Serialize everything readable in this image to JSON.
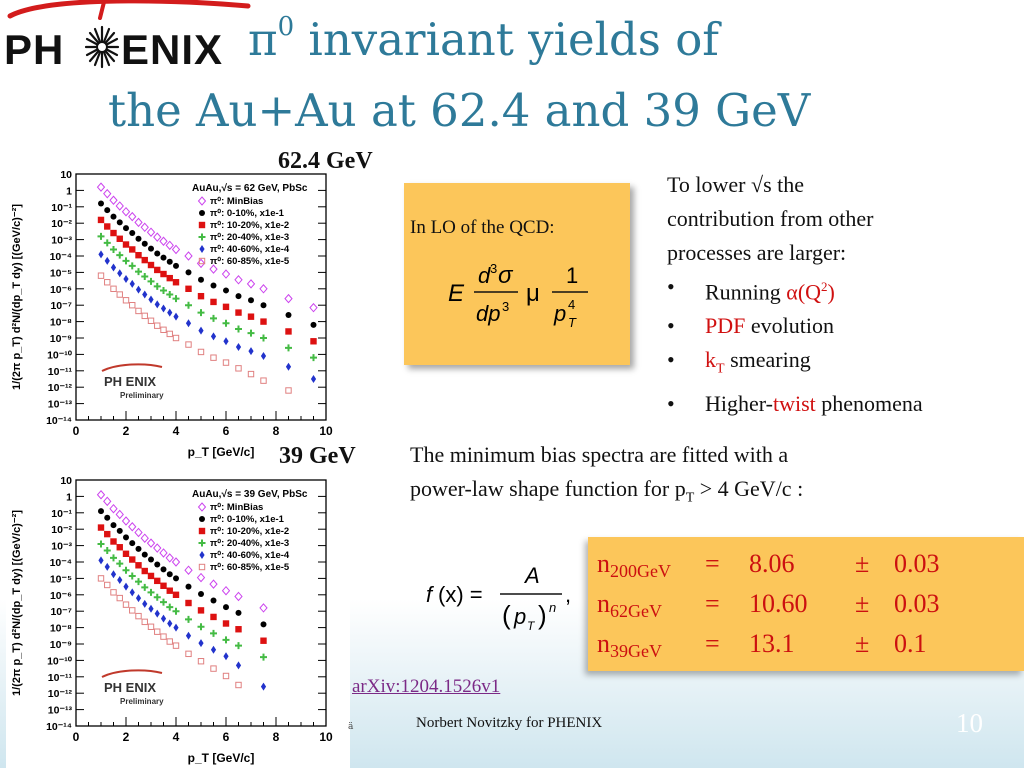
{
  "logo": {
    "left": "PH",
    "right": "ENIX"
  },
  "title": {
    "line1_symbol": "π",
    "line1_sup": "0",
    "line1_rest": " invariant yields of",
    "line2": "the Au+Au at 62.4 and 39 GeV"
  },
  "plots": [
    {
      "energy_label": "62.4 GeV",
      "legend_title": "AuAu,√s = 62 GeV, PbSc",
      "legend": [
        "π⁰: MinBias",
        "π⁰: 0-10%, x1e-1",
        "π⁰: 10-20%, x1e-2",
        "π⁰: 20-40%, x1e-3",
        "π⁰: 40-60%, x1e-4",
        "π⁰: 60-85%, x1e-5"
      ],
      "xlabel": "p_T [GeV/c]",
      "ylabel": "1/(2π p_T) d²N/(dp_T dy) [(GeV/c)⁻²]",
      "logo_text": "PH ENIX",
      "logo_sub": "Preliminary"
    },
    {
      "energy_label": "39 GeV",
      "legend_title": "AuAu,√s = 39 GeV, PbSc",
      "legend": [
        "π⁰: MinBias",
        "π⁰: 0-10%, x1e-1",
        "π⁰: 10-20%, x1e-2",
        "π⁰: 20-40%, x1e-3",
        "π⁰: 40-60%, x1e-4",
        "π⁰: 60-85%, x1e-5"
      ],
      "xlabel": "p_T [GeV/c]",
      "ylabel": "1/(2π p_T) d²N/(dp_T dy) [(GeV/c)⁻²]",
      "logo_text": "PH ENIX",
      "logo_sub": "Preliminary"
    }
  ],
  "chart_data": [
    {
      "type": "scatter",
      "title": "AuAu,√s = 62 GeV, PbSc",
      "xlabel": "p_T [GeV/c]",
      "ylabel": "1/(2π p_T) d²N/(dp_T dy) [(GeV/c)⁻²]",
      "xlim": [
        0,
        10
      ],
      "ylim_log10": [
        -14,
        1
      ],
      "yscale": "log",
      "x_ticks": [
        "0",
        "2",
        "4",
        "6",
        "8",
        "10"
      ],
      "y_ticks": [
        "10",
        "1",
        "10⁻¹",
        "10⁻²",
        "10⁻³",
        "10⁻⁴",
        "10⁻⁵",
        "10⁻⁶",
        "10⁻⁷",
        "10⁻⁸",
        "10⁻⁹",
        "10⁻¹⁰",
        "10⁻¹¹",
        "10⁻¹²",
        "10⁻¹³",
        "10⁻¹⁴"
      ],
      "legend_position": "top-right",
      "series": [
        {
          "name": "π⁰: MinBias",
          "color": "#cc44ee",
          "marker": "open-diamond",
          "x": [
            1.0,
            1.25,
            1.5,
            1.75,
            2.0,
            2.25,
            2.5,
            2.75,
            3.0,
            3.25,
            3.5,
            3.75,
            4.0,
            4.5,
            5.0,
            5.5,
            6.0,
            6.5,
            7.0,
            7.5,
            8.5,
            9.5
          ],
          "y_log10": [
            0.2,
            -0.2,
            -0.6,
            -0.95,
            -1.3,
            -1.6,
            -1.95,
            -2.25,
            -2.55,
            -2.85,
            -3.1,
            -3.35,
            -3.6,
            -4.0,
            -4.45,
            -4.8,
            -5.1,
            -5.45,
            -5.7,
            -6.0,
            -6.6,
            -7.15
          ]
        },
        {
          "name": "π⁰: 0-10%, x1e-1",
          "color": "#000000",
          "marker": "filled-circle",
          "x": [
            1.0,
            1.25,
            1.5,
            1.75,
            2.0,
            2.25,
            2.5,
            2.75,
            3.0,
            3.25,
            3.5,
            3.75,
            4.0,
            4.5,
            5.0,
            5.5,
            6.0,
            6.5,
            7.0,
            7.5,
            8.5,
            9.5
          ],
          "y_log10": [
            -0.8,
            -1.2,
            -1.6,
            -1.95,
            -2.3,
            -2.6,
            -2.95,
            -3.25,
            -3.55,
            -3.85,
            -4.1,
            -4.35,
            -4.6,
            -5.0,
            -5.45,
            -5.8,
            -6.1,
            -6.45,
            -6.7,
            -7.0,
            -7.6,
            -8.2
          ]
        },
        {
          "name": "π⁰: 10-20%, x1e-2",
          "color": "#dd1111",
          "marker": "filled-square",
          "x": [
            1.0,
            1.25,
            1.5,
            1.75,
            2.0,
            2.25,
            2.5,
            2.75,
            3.0,
            3.25,
            3.5,
            3.75,
            4.0,
            4.5,
            5.0,
            5.5,
            6.0,
            6.5,
            7.0,
            7.5,
            8.5,
            9.5
          ],
          "y_log10": [
            -1.8,
            -2.2,
            -2.6,
            -2.95,
            -3.3,
            -3.6,
            -3.95,
            -4.25,
            -4.55,
            -4.85,
            -5.1,
            -5.35,
            -5.6,
            -6.0,
            -6.45,
            -6.8,
            -7.1,
            -7.45,
            -7.7,
            -8.0,
            -8.6,
            -9.2
          ]
        },
        {
          "name": "π⁰: 20-40%, x1e-3",
          "color": "#44bb44",
          "marker": "cross",
          "x": [
            1.0,
            1.25,
            1.5,
            1.75,
            2.0,
            2.25,
            2.5,
            2.75,
            3.0,
            3.25,
            3.5,
            3.75,
            4.0,
            4.5,
            5.0,
            5.5,
            6.0,
            6.5,
            7.0,
            7.5,
            8.5,
            9.5
          ],
          "y_log10": [
            -2.8,
            -3.2,
            -3.6,
            -3.95,
            -4.3,
            -4.6,
            -4.95,
            -5.25,
            -5.55,
            -5.85,
            -6.1,
            -6.35,
            -6.6,
            -7.0,
            -7.45,
            -7.8,
            -8.1,
            -8.45,
            -8.7,
            -9.0,
            -9.6,
            -10.2
          ]
        },
        {
          "name": "π⁰: 40-60%, x1e-4",
          "color": "#2233cc",
          "marker": "filled-diamond",
          "x": [
            1.0,
            1.25,
            1.5,
            1.75,
            2.0,
            2.25,
            2.5,
            2.75,
            3.0,
            3.25,
            3.5,
            3.75,
            4.0,
            4.5,
            5.0,
            5.5,
            6.0,
            6.5,
            7.0,
            7.5,
            8.5,
            9.5
          ],
          "y_log10": [
            -3.9,
            -4.3,
            -4.7,
            -5.05,
            -5.4,
            -5.7,
            -6.05,
            -6.35,
            -6.65,
            -6.95,
            -7.2,
            -7.45,
            -7.7,
            -8.1,
            -8.55,
            -8.9,
            -9.2,
            -9.55,
            -9.8,
            -10.1,
            -10.75,
            -11.5
          ]
        },
        {
          "name": "π⁰: 60-85%, x1e-5",
          "color": "#e08080",
          "marker": "open-square",
          "x": [
            1.0,
            1.25,
            1.5,
            1.75,
            2.0,
            2.25,
            2.5,
            2.75,
            3.0,
            3.25,
            3.5,
            3.75,
            4.0,
            4.5,
            5.0,
            5.5,
            6.0,
            6.5,
            7.0,
            7.5,
            8.5
          ],
          "y_log10": [
            -5.2,
            -5.6,
            -6.0,
            -6.35,
            -6.7,
            -7.0,
            -7.35,
            -7.65,
            -7.95,
            -8.25,
            -8.5,
            -8.75,
            -9.0,
            -9.4,
            -9.85,
            -10.2,
            -10.5,
            -10.85,
            -11.2,
            -11.6,
            -12.2
          ]
        }
      ]
    },
    {
      "type": "scatter",
      "title": "AuAu,√s = 39 GeV, PbSc",
      "xlabel": "p_T [GeV/c]",
      "ylabel": "1/(2π p_T) d²N/(dp_T dy) [(GeV/c)⁻²]",
      "xlim": [
        0,
        10
      ],
      "ylim_log10": [
        -14,
        1
      ],
      "yscale": "log",
      "x_ticks": [
        "0",
        "2",
        "4",
        "6",
        "8",
        "10"
      ],
      "y_ticks": [
        "10",
        "1",
        "10⁻¹",
        "10⁻²",
        "10⁻³",
        "10⁻⁴",
        "10⁻⁵",
        "10⁻⁶",
        "10⁻⁷",
        "10⁻⁸",
        "10⁻⁹",
        "10⁻¹⁰",
        "10⁻¹¹",
        "10⁻¹²",
        "10⁻¹³",
        "10⁻¹⁴"
      ],
      "legend_position": "top-right",
      "series": [
        {
          "name": "π⁰: MinBias",
          "color": "#cc44ee",
          "marker": "open-diamond",
          "x": [
            1.0,
            1.25,
            1.5,
            1.75,
            2.0,
            2.25,
            2.5,
            2.75,
            3.0,
            3.25,
            3.5,
            3.75,
            4.0,
            4.5,
            5.0,
            5.5,
            6.0,
            6.5,
            7.5
          ],
          "y_log10": [
            0.1,
            -0.3,
            -0.75,
            -1.1,
            -1.5,
            -1.85,
            -2.2,
            -2.55,
            -2.85,
            -3.15,
            -3.45,
            -3.75,
            -4.0,
            -4.5,
            -4.95,
            -5.35,
            -5.75,
            -6.1,
            -6.8
          ]
        },
        {
          "name": "π⁰: 0-10%, x1e-1",
          "color": "#000000",
          "marker": "filled-circle",
          "x": [
            1.0,
            1.25,
            1.5,
            1.75,
            2.0,
            2.25,
            2.5,
            2.75,
            3.0,
            3.25,
            3.5,
            3.75,
            4.0,
            4.5,
            5.0,
            5.5,
            6.0,
            6.5,
            7.5
          ],
          "y_log10": [
            -0.9,
            -1.3,
            -1.75,
            -2.1,
            -2.5,
            -2.85,
            -3.2,
            -3.55,
            -3.85,
            -4.15,
            -4.45,
            -4.75,
            -5.0,
            -5.5,
            -5.95,
            -6.35,
            -6.75,
            -7.1,
            -7.8
          ]
        },
        {
          "name": "π⁰: 10-20%, x1e-2",
          "color": "#dd1111",
          "marker": "filled-square",
          "x": [
            1.0,
            1.25,
            1.5,
            1.75,
            2.0,
            2.25,
            2.5,
            2.75,
            3.0,
            3.25,
            3.5,
            3.75,
            4.0,
            4.5,
            5.0,
            5.5,
            6.0,
            6.5,
            7.5
          ],
          "y_log10": [
            -1.9,
            -2.3,
            -2.75,
            -3.1,
            -3.5,
            -3.85,
            -4.2,
            -4.55,
            -4.85,
            -5.15,
            -5.45,
            -5.75,
            -6.0,
            -6.5,
            -6.95,
            -7.35,
            -7.75,
            -8.1,
            -8.8
          ]
        },
        {
          "name": "π⁰: 20-40%, x1e-3",
          "color": "#44bb44",
          "marker": "cross",
          "x": [
            1.0,
            1.25,
            1.5,
            1.75,
            2.0,
            2.25,
            2.5,
            2.75,
            3.0,
            3.25,
            3.5,
            3.75,
            4.0,
            4.5,
            5.0,
            5.5,
            6.0,
            6.5,
            7.5
          ],
          "y_log10": [
            -2.9,
            -3.3,
            -3.75,
            -4.1,
            -4.5,
            -4.85,
            -5.2,
            -5.55,
            -5.85,
            -6.15,
            -6.45,
            -6.75,
            -7.0,
            -7.5,
            -7.95,
            -8.35,
            -8.75,
            -9.1,
            -9.8
          ]
        },
        {
          "name": "π⁰: 40-60%, x1e-4",
          "color": "#2233cc",
          "marker": "filled-diamond",
          "x": [
            1.0,
            1.25,
            1.5,
            1.75,
            2.0,
            2.25,
            2.5,
            2.75,
            3.0,
            3.25,
            3.5,
            3.75,
            4.0,
            4.5,
            5.0,
            5.5,
            6.0,
            6.5,
            7.5
          ],
          "y_log10": [
            -3.9,
            -4.3,
            -4.75,
            -5.1,
            -5.5,
            -5.85,
            -6.2,
            -6.55,
            -6.85,
            -7.15,
            -7.45,
            -7.75,
            -8.0,
            -8.5,
            -8.95,
            -9.35,
            -9.75,
            -10.3,
            -11.6
          ]
        },
        {
          "name": "π⁰: 60-85%, x1e-5",
          "color": "#e08080",
          "marker": "open-square",
          "x": [
            1.0,
            1.25,
            1.5,
            1.75,
            2.0,
            2.25,
            2.5,
            2.75,
            3.0,
            3.25,
            3.5,
            3.75,
            4.0,
            4.5,
            5.0,
            5.5,
            6.0,
            6.5
          ],
          "y_log10": [
            -5.0,
            -5.4,
            -5.85,
            -6.2,
            -6.6,
            -6.95,
            -7.3,
            -7.65,
            -7.95,
            -8.25,
            -8.55,
            -8.85,
            -9.1,
            -9.6,
            -10.05,
            -10.5,
            -10.95,
            -11.5
          ]
        }
      ]
    }
  ],
  "lo_box": {
    "label": "In LO of the QCD:",
    "formula": {
      "E": "E",
      "num": "d",
      "num_sup": "3",
      "sigma": "σ",
      "den": "dp",
      "den_sup": "3",
      "mu": "μ",
      "one": "1",
      "p": "p",
      "p_sub": "T",
      "p_sup": "4"
    }
  },
  "reasons": {
    "intro_line1": "To lower √s the",
    "intro_line2": "contribution from other",
    "intro_line3": "processes are larger:",
    "bullet": "•",
    "items": [
      {
        "pre": "Running ",
        "red": "α(Q",
        "red_sup": "2",
        "red_close": ")",
        "post": ""
      },
      {
        "pre": "",
        "red": "PDF",
        "post": " evolution"
      },
      {
        "pre": "",
        "red": "k",
        "red_sub": "T",
        "post": " smearing"
      },
      {
        "pre": "Higher-",
        "red": "twist",
        "post": " phenomena"
      }
    ]
  },
  "fit": {
    "line1": "The minimum bias spectra are fitted with a",
    "line2_pre": "power-law shape function for p",
    "line2_sub": "T",
    "line2_post": " > 4 GeV/c :",
    "formula": {
      "f": "f",
      "x": "(x) =",
      "A": "A",
      "p": "p",
      "p_sub": "T",
      "n": "n",
      "comma": ","
    }
  },
  "n_values": [
    {
      "n": "n",
      "sub": "200GeV",
      "eq": "=",
      "value": "8.06",
      "pm": "±",
      "err": "0.03"
    },
    {
      "n": "n",
      "sub": "62GeV",
      "eq": "=",
      "value": "10.60",
      "pm": "±",
      "err": "0.03"
    },
    {
      "n": "n",
      "sub": "39GeV",
      "eq": "=",
      "value": "13.1",
      "pm": "±",
      "err": "0.1"
    }
  ],
  "arxiv": "arXiv:1204.1526v1",
  "footer": {
    "author": "Norbert Novitzky for PHENIX",
    "mark": "ä",
    "page": "10"
  },
  "colors": {
    "title": "#2e7a99",
    "accent_box": "#fcc65a",
    "highlight_red": "#d01010",
    "link": "#7b2a86"
  }
}
